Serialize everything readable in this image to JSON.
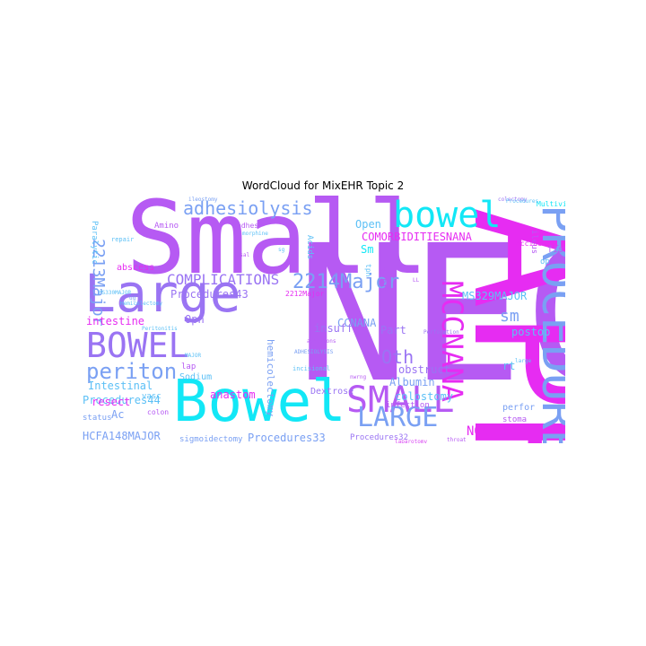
{
  "title": "WordCloud for MixEHR Topic 2",
  "colors": {
    "magenta": "#e62cf2",
    "violet": "#b65af3",
    "purple": "#9a74f3",
    "blue": "#7aa0f3",
    "sky": "#5cc0f6",
    "cyan": "#12e7f6",
    "pink": "#d945f2"
  },
  "words": [
    {
      "text": "NEC",
      "color": "violet"
    },
    {
      "text": "APR",
      "color": "magenta"
    },
    {
      "text": "Small",
      "color": "violet"
    },
    {
      "text": "Bowel",
      "color": "cyan"
    },
    {
      "text": "PROCEDURES",
      "color": "blue"
    },
    {
      "text": "Large",
      "color": "purple"
    },
    {
      "text": "bowel",
      "color": "cyan"
    },
    {
      "text": "BOWEL",
      "color": "purple"
    },
    {
      "text": "SMALL",
      "color": "violet"
    },
    {
      "text": "LARGE",
      "color": "blue"
    },
    {
      "text": "MCCNANA",
      "color": "magenta"
    },
    {
      "text": "2214Major",
      "color": "blue"
    },
    {
      "text": "periton",
      "color": "blue"
    },
    {
      "text": "adhesiolysis",
      "color": "blue"
    },
    {
      "text": "2213Major",
      "color": "blue"
    },
    {
      "text": "COMPLICATIONS",
      "color": "purple"
    },
    {
      "text": "sm",
      "color": "blue"
    },
    {
      "text": "Oth",
      "color": "purple"
    },
    {
      "text": "Temporary",
      "color": "blue"
    },
    {
      "text": "Procedures43",
      "color": "purple"
    },
    {
      "text": "Procedures44",
      "color": "sky"
    },
    {
      "text": "intestine",
      "color": "magenta"
    },
    {
      "text": "Intestinal",
      "color": "sky"
    },
    {
      "text": "HCFA148MAJOR",
      "color": "blue"
    },
    {
      "text": "Procedures33",
      "color": "blue"
    },
    {
      "text": "Procedures32",
      "color": "purple"
    },
    {
      "text": "MS329MAJOR",
      "color": "sky"
    },
    {
      "text": "COMORBIDITIESNANA",
      "color": "magenta"
    },
    {
      "text": "NOS",
      "color": "magenta"
    },
    {
      "text": "Open",
      "color": "sky"
    },
    {
      "text": "CCNANA",
      "color": "blue"
    },
    {
      "text": "Peritoneal",
      "color": "magenta"
    },
    {
      "text": "Procedures21",
      "color": "violet"
    },
    {
      "text": "Part",
      "color": "purple"
    },
    {
      "text": "Albumin",
      "color": "blue"
    },
    {
      "text": "obstruct",
      "color": "purple"
    },
    {
      "text": "anastom",
      "color": "magenta"
    },
    {
      "text": "hemicolectomy",
      "color": "blue"
    },
    {
      "text": "colostomy",
      "color": "sky"
    },
    {
      "text": "insuff",
      "color": "purple"
    },
    {
      "text": "resect",
      "color": "magenta"
    },
    {
      "text": "Dextrose",
      "color": "purple"
    },
    {
      "text": "postop",
      "color": "sky"
    },
    {
      "text": "Paralytic",
      "color": "sky"
    },
    {
      "text": "abscess",
      "color": "magenta"
    },
    {
      "text": "Opn",
      "color": "purple"
    },
    {
      "text": "Sodium",
      "color": "sky"
    },
    {
      "text": "fistula",
      "color": "violet"
    },
    {
      "text": "Ac",
      "color": "blue"
    },
    {
      "text": "colon",
      "color": "violet"
    },
    {
      "text": "stoma",
      "color": "violet"
    },
    {
      "text": "perfor",
      "color": "blue"
    },
    {
      "text": "infection",
      "color": "violet"
    },
    {
      "text": "status",
      "color": "blue"
    },
    {
      "text": "sigmoidectomy",
      "color": "blue"
    },
    {
      "text": "rt",
      "color": "sky"
    },
    {
      "text": "Sm",
      "color": "cyan"
    },
    {
      "text": "hernia",
      "color": "violet"
    },
    {
      "text": "ift",
      "color": "violet"
    },
    {
      "text": "Acids",
      "color": "sky"
    },
    {
      "text": "Amino",
      "color": "violet"
    },
    {
      "text": "ileus",
      "color": "violet"
    },
    {
      "text": "op",
      "color": "sky"
    },
    {
      "text": "Accidental",
      "color": "magenta"
    },
    {
      "text": "Multivitamin",
      "color": "cyan"
    },
    {
      "text": "lap",
      "color": "violet"
    },
    {
      "text": "vasc",
      "color": "sky"
    },
    {
      "text": "adhes",
      "color": "violet"
    },
    {
      "text": "tpn",
      "color": "sky"
    },
    {
      "text": "incisional",
      "color": "sky"
    },
    {
      "text": "2212Major",
      "color": "magenta"
    },
    {
      "text": "repair",
      "color": "sky"
    },
    {
      "text": "ADHESIOLYSIS",
      "color": "blue"
    },
    {
      "text": "colectomy",
      "color": "purple"
    },
    {
      "text": "morphine",
      "color": "sky"
    },
    {
      "text": "laparotomy",
      "color": "pink"
    },
    {
      "text": "Peritonitis",
      "color": "sky"
    },
    {
      "text": "Procedures",
      "color": "sky"
    },
    {
      "text": "throat",
      "color": "violet"
    },
    {
      "text": "Perforation",
      "color": "purple"
    },
    {
      "text": "sg",
      "color": "sky"
    },
    {
      "text": "adhesions",
      "color": "violet"
    },
    {
      "text": "large",
      "color": "sky"
    },
    {
      "text": "ileostomy",
      "color": "blue"
    },
    {
      "text": "nasal",
      "color": "violet"
    },
    {
      "text": "MS330MAJOR",
      "color": "sky"
    },
    {
      "text": "nwrng",
      "color": "violet"
    },
    {
      "text": "Hemicolectomy",
      "color": "sky"
    },
    {
      "text": "MAJOR",
      "color": "sky"
    },
    {
      "text": "LL",
      "color": "violet"
    },
    {
      "text": "ug",
      "color": "blue"
    }
  ]
}
